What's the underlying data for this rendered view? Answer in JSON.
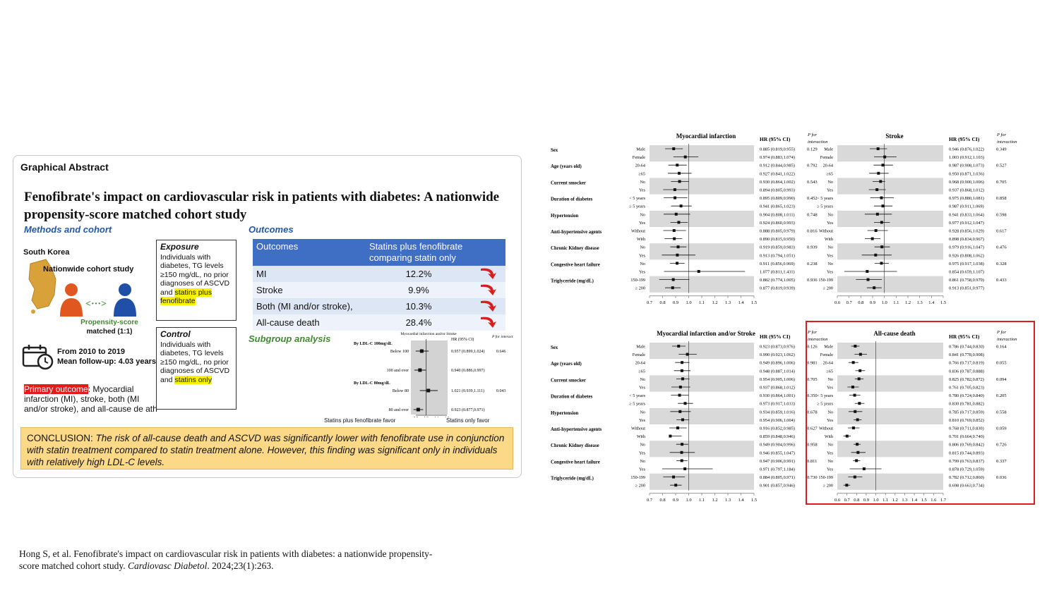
{
  "graphical_abstract": {
    "label": "Graphical Abstract",
    "title": "Fenofibrate's impact on cardiovascular risk in patients with diabetes: A nationwide propensity-score matched cohort study",
    "methods_heading": "Methods and cohort",
    "country": "South Korea",
    "cohort": "Nationwide cohort study",
    "psm_line1": "Propensity-score",
    "psm_line2": "matched (1:1)",
    "period_line1": "From 2010 to 2019",
    "period_line2": "Mean follow-up: 4.03 years",
    "primary_label": "Primary outcome",
    "primary_text": ": Myocardial infarction (MI), stroke, both (MI and/or stroke), and all-cause de ath",
    "exposure_title": "Exposure",
    "exposure_text": "Individuals with diabetes, TG levels ≥150 mg/dL, no prior diagnoses of ASCVD and",
    "exposure_highlight": "statins plus fenofibrate",
    "control_title": "Control",
    "control_text": "Individuals with diabetes, TG levels ≥150 mg/dL, no prior diagnoses of ASCVD and",
    "control_highlight": "statins only",
    "outcomes_heading": "Outcomes",
    "outcomes_col1": "Outcomes",
    "outcomes_col2": "Statins plus fenofibrate comparing statin only",
    "outcomes_rows": [
      {
        "name": "MI",
        "value": "12.2%"
      },
      {
        "name": "Stroke",
        "value": "9.9%"
      },
      {
        "name": "Both (MI and/or stroke),",
        "value": "10.3%"
      },
      {
        "name": "All-cause death",
        "value": "28.4%"
      }
    ],
    "subgroup_heading": "Subgroup analysis",
    "mini_forest": {
      "col_title": "Myocardial infarction and/or Stroke",
      "hr_header": "HR (95% CI)",
      "p_header": "P for interaction",
      "groups": [
        {
          "label": "By LDL-C 100mg/dL",
          "p": "0.646",
          "rows": [
            {
              "label": "Below 100",
              "hr": 0.957,
              "lo": 0.899,
              "hi": 1.024,
              "text": "0.957 (0.899,1.024)"
            },
            {
              "label": "100 and over",
              "hr": 0.94,
              "lo": 0.886,
              "hi": 0.997,
              "text": "0.940 (0.886,0.997)"
            }
          ]
        },
        {
          "label": "By LDL-C 80mg/dL",
          "p": "0.043",
          "rows": [
            {
              "label": "Below 80",
              "hr": 1.021,
              "lo": 0.939,
              "hi": 1.111,
              "text": "1.021 (0.939,1.111)"
            },
            {
              "label": "80 and over",
              "hr": 0.923,
              "lo": 0.877,
              "hi": 0.971,
              "text": "0.923 (0.877,0.971)"
            }
          ]
        }
      ],
      "axis_ticks": [
        "0.9",
        "1.0",
        "1.1",
        "1.2"
      ],
      "favor_left": "Statins plus fenofibrate favor",
      "favor_right": "Statins only favor"
    },
    "conclusion_label": "CONCLUSION:",
    "conclusion_text": "The risk of all-cause death and ASCVD was significantly lower with fenofibrate use in conjunction with statin treatment compared to statin treatment alone. However, this finding was significant only in individuals with relatively high LDL-C levels."
  },
  "citation_plain": "Hong S, et al. Fenofibrate's impact on cardiovascular risk in patients with diabetes: a nationwide propensity-score matched cohort study.",
  "citation_journal": "Cardiovasc Diabetol",
  "citation_tail": ". 2024;23(1):263.",
  "forest_common": {
    "hr_header": "HR (95% CI)",
    "p_header_1": "P for",
    "p_header_2": "interaction",
    "categories": [
      {
        "name": "Sex",
        "levels": [
          "Male",
          "Female"
        ]
      },
      {
        "name": "Age (years old)",
        "levels": [
          "20-64",
          "≥65"
        ]
      },
      {
        "name": "Current smocker",
        "levels": [
          "No",
          "Yes"
        ]
      },
      {
        "name": "Duration of diabetes",
        "levels": [
          "< 5 years",
          "≥ 5 years"
        ]
      },
      {
        "name": "Hypertension",
        "levels": [
          "No",
          "Yes"
        ]
      },
      {
        "name": "Anti-hypertensive agents",
        "levels": [
          "Without",
          "With"
        ]
      },
      {
        "name": "Chronic Kidney disease",
        "levels": [
          "No",
          "Yes"
        ]
      },
      {
        "name": "Congestive heart failure",
        "levels": [
          "No",
          "Yes"
        ]
      },
      {
        "name": "Triglyceride (mg/dL)",
        "levels": [
          "150-199",
          "≥ 200"
        ]
      }
    ]
  },
  "chart_data": [
    {
      "type": "forest",
      "title": "Myocardial infarction",
      "axis": {
        "min": 0.7,
        "max": 1.5,
        "ticks": [
          "0.7",
          "0.8",
          "0.9",
          "1.0",
          "1.1",
          "1.2",
          "1.3",
          "1.4",
          "1.5"
        ]
      },
      "p": [
        "0.129",
        "0.792",
        "0.543",
        "0.452",
        "0.748",
        "0.816",
        "0.939",
        "0.238",
        "0.936"
      ],
      "rows": [
        {
          "hr": 0.885,
          "lo": 0.819,
          "hi": 0.955,
          "text": "0.885 (0.819,0.955)"
        },
        {
          "hr": 0.974,
          "lo": 0.883,
          "hi": 1.074,
          "text": "0.974 (0.883,1.074)"
        },
        {
          "hr": 0.912,
          "lo": 0.844,
          "hi": 0.985,
          "text": "0.912 (0.844,0.985)"
        },
        {
          "hr": 0.927,
          "lo": 0.841,
          "hi": 1.022,
          "text": "0.927 (0.841,1.022)"
        },
        {
          "hr": 0.93,
          "lo": 0.864,
          "hi": 1.002,
          "text": "0.930 (0.864,1.002)"
        },
        {
          "hr": 0.894,
          "lo": 0.805,
          "hi": 0.993,
          "text": "0.894 (0.805,0.993)"
        },
        {
          "hr": 0.895,
          "lo": 0.809,
          "hi": 0.99,
          "text": "0.895 (0.809,0.990)"
        },
        {
          "hr": 0.941,
          "lo": 0.865,
          "hi": 1.023,
          "text": "0.941 (0.865,1.023)"
        },
        {
          "hr": 0.904,
          "lo": 0.808,
          "hi": 1.011,
          "text": "0.904 (0.808,1.011)"
        },
        {
          "hr": 0.924,
          "lo": 0.86,
          "hi": 0.993,
          "text": "0.924 (0.860,0.993)"
        },
        {
          "hr": 0.888,
          "lo": 0.805,
          "hi": 0.979,
          "text": "0.888 (0.805,0.979)"
        },
        {
          "hr": 0.89,
          "lo": 0.815,
          "hi": 0.95,
          "text": "0.890 (0.815,0.950)"
        },
        {
          "hr": 0.919,
          "lo": 0.859,
          "hi": 0.983,
          "text": "0.919 (0.859,0.983)"
        },
        {
          "hr": 0.913,
          "lo": 0.794,
          "hi": 1.051,
          "text": "0.913 (0.794,1.051)"
        },
        {
          "hr": 0.911,
          "lo": 0.856,
          "hi": 0.969,
          "text": "0.911 (0.856,0.969)"
        },
        {
          "hr": 1.077,
          "lo": 0.811,
          "hi": 1.431,
          "text": "1.077 (0.811,1.431)"
        },
        {
          "hr": 0.882,
          "lo": 0.774,
          "hi": 1.005,
          "text": "0.882 (0.774,1.005)"
        },
        {
          "hr": 0.877,
          "lo": 0.819,
          "hi": 0.939,
          "text": "0.877 (0.819,0.939)"
        }
      ]
    },
    {
      "type": "forest",
      "title": "Stroke",
      "axis": {
        "min": 0.6,
        "max": 1.5,
        "ticks": [
          "0.6",
          "0.7",
          "0.8",
          "0.9",
          "1.0",
          "1.1",
          "1.2",
          "1.3",
          "1.4",
          "1.5"
        ]
      },
      "p": [
        "0.349",
        "0.527",
        "0.705",
        "0.858",
        "0.598",
        "0.617",
        "0.476",
        "0.328",
        "0.433"
      ],
      "rows": [
        {
          "hr": 0.946,
          "lo": 0.876,
          "hi": 1.022,
          "text": "0.946 (0.876,1.022)"
        },
        {
          "hr": 1.003,
          "lo": 0.912,
          "hi": 1.103,
          "text": "1.003 (0.912,1.103)"
        },
        {
          "hr": 0.987,
          "lo": 0.908,
          "hi": 1.073,
          "text": "0.987 (0.908,1.073)"
        },
        {
          "hr": 0.95,
          "lo": 0.871,
          "hi": 1.036,
          "text": "0.950 (0.871,1.036)"
        },
        {
          "hr": 0.968,
          "lo": 0.9,
          "hi": 1.006,
          "text": "0.968 (0.900,1.006)"
        },
        {
          "hr": 0.937,
          "lo": 0.868,
          "hi": 1.012,
          "text": "0.937 (0.868,1.012)"
        },
        {
          "hr": 0.975,
          "lo": 0.88,
          "hi": 1.081,
          "text": "0.975 (0.880,1.081)"
        },
        {
          "hr": 0.987,
          "lo": 0.911,
          "hi": 1.069,
          "text": "0.987 (0.911,1.069)"
        },
        {
          "hr": 0.941,
          "lo": 0.833,
          "hi": 1.064,
          "text": "0.941 (0.833,1.064)"
        },
        {
          "hr": 0.977,
          "lo": 0.912,
          "hi": 1.047,
          "text": "0.977 (0.912,1.047)"
        },
        {
          "hr": 0.928,
          "lo": 0.856,
          "hi": 1.029,
          "text": "0.928 (0.856,1.029)"
        },
        {
          "hr": 0.898,
          "lo": 0.834,
          "hi": 0.967,
          "text": "0.898 (0.834,0.967)"
        },
        {
          "hr": 0.979,
          "lo": 0.916,
          "hi": 1.047,
          "text": "0.979 (0.916,1.047)"
        },
        {
          "hr": 0.926,
          "lo": 0.808,
          "hi": 1.062,
          "text": "0.926 (0.808,1.062)"
        },
        {
          "hr": 0.975,
          "lo": 0.917,
          "hi": 1.038,
          "text": "0.975 (0.917,1.038)"
        },
        {
          "hr": 0.854,
          "lo": 0.659,
          "hi": 1.107,
          "text": "0.854 (0.659,1.107)"
        },
        {
          "hr": 0.861,
          "lo": 0.758,
          "hi": 0.979,
          "text": "0.861 (0.758,0.979)"
        },
        {
          "hr": 0.913,
          "lo": 0.851,
          "hi": 0.977,
          "text": "0.913 (0.851,0.977)"
        }
      ]
    },
    {
      "type": "forest",
      "title": "Myocardial infarction and/or Stroke",
      "axis": {
        "min": 0.7,
        "max": 1.5,
        "ticks": [
          "0.7",
          "0.8",
          "0.9",
          "1.0",
          "1.1",
          "1.2",
          "1.3",
          "1.4",
          "1.5"
        ]
      },
      "p": [
        "0.126",
        "0.981",
        "0.705",
        "0.350",
        "0.678",
        "0.627",
        "0.958",
        "0.811",
        "0.730"
      ],
      "rows": [
        {
          "hr": 0.923,
          "lo": 0.873,
          "hi": 0.976,
          "text": "0.923 (0.873,0.976)"
        },
        {
          "hr": 0.99,
          "lo": 0.923,
          "hi": 1.062,
          "text": "0.990 (0.923,1.062)"
        },
        {
          "hr": 0.949,
          "lo": 0.896,
          "hi": 1.006,
          "text": "0.949 (0.896,1.006)"
        },
        {
          "hr": 0.948,
          "lo": 0.887,
          "hi": 1.014,
          "text": "0.948 (0.887,1.014)"
        },
        {
          "hr": 0.954,
          "lo": 0.905,
          "hi": 1.006,
          "text": "0.954 (0.905,1.006)"
        },
        {
          "hr": 0.937,
          "lo": 0.868,
          "hi": 1.012,
          "text": "0.937 (0.868,1.012)"
        },
        {
          "hr": 0.93,
          "lo": 0.864,
          "hi": 1.001,
          "text": "0.930 (0.864,1.001)"
        },
        {
          "hr": 0.973,
          "lo": 0.917,
          "hi": 1.033,
          "text": "0.973 (0.917,1.033)"
        },
        {
          "hr": 0.934,
          "lo": 0.859,
          "hi": 1.016,
          "text": "0.934 (0.859,1.016)"
        },
        {
          "hr": 0.954,
          "lo": 0.906,
          "hi": 1.004,
          "text": "0.954 (0.906,1.004)"
        },
        {
          "hr": 0.916,
          "lo": 0.852,
          "hi": 0.985,
          "text": "0.916 (0.852,0.985)"
        },
        {
          "hr": 0.859,
          "lo": 0.848,
          "hi": 0.946,
          "text": "0.859 (0.848,0.946)"
        },
        {
          "hr": 0.949,
          "lo": 0.904,
          "hi": 0.996,
          "text": "0.949 (0.904,0.996)"
        },
        {
          "hr": 0.946,
          "lo": 0.855,
          "hi": 1.047,
          "text": "0.946 (0.855,1.047)"
        },
        {
          "hr": 0.947,
          "lo": 0.906,
          "hi": 0.991,
          "text": "0.947 (0.906,0.991)"
        },
        {
          "hr": 0.971,
          "lo": 0.797,
          "hi": 1.184,
          "text": "0.971 (0.797,1.184)"
        },
        {
          "hr": 0.884,
          "lo": 0.805,
          "hi": 0.971,
          "text": "0.884 (0.805,0.971)"
        },
        {
          "hr": 0.901,
          "lo": 0.857,
          "hi": 0.946,
          "text": "0.901 (0.857,0.946)"
        }
      ]
    },
    {
      "type": "forest",
      "title": "All-cause death",
      "axis": {
        "min": 0.6,
        "max": 1.7,
        "ticks": [
          "0.6",
          "0.7",
          "0.8",
          "0.9",
          "1.0",
          "1.1",
          "1.2",
          "1.3",
          "1.4",
          "1.5",
          "1.6",
          "1.7"
        ]
      },
      "p": [
        "0.164",
        "0.055",
        "0.094",
        "0.205",
        "0.558",
        "0.059",
        "0.726",
        "0.337",
        "0.036"
      ],
      "rows": [
        {
          "hr": 0.786,
          "lo": 0.744,
          "hi": 0.83,
          "text": "0.786 (0.744,0.830)"
        },
        {
          "hr": 0.841,
          "lo": 0.778,
          "hi": 0.908,
          "text": "0.841 (0.778,0.908)"
        },
        {
          "hr": 0.766,
          "lo": 0.717,
          "hi": 0.819,
          "text": "0.766 (0.717,0.819)"
        },
        {
          "hr": 0.836,
          "lo": 0.787,
          "hi": 0.888,
          "text": "0.836 (0.787,0.888)"
        },
        {
          "hr": 0.825,
          "lo": 0.782,
          "hi": 0.872,
          "text": "0.825 (0.782,0.872)"
        },
        {
          "hr": 0.761,
          "lo": 0.705,
          "hi": 0.823,
          "text": "0.761 (0.705,0.823)"
        },
        {
          "hr": 0.78,
          "lo": 0.724,
          "hi": 0.84,
          "text": "0.780 (0.724,0.840)"
        },
        {
          "hr": 0.83,
          "lo": 0.781,
          "hi": 0.882,
          "text": "0.830 (0.781,0.882)"
        },
        {
          "hr": 0.785,
          "lo": 0.717,
          "hi": 0.859,
          "text": "0.785 (0.717,0.859)"
        },
        {
          "hr": 0.81,
          "lo": 0.769,
          "hi": 0.852,
          "text": "0.810 (0.769,0.852)"
        },
        {
          "hr": 0.768,
          "lo": 0.711,
          "hi": 0.83,
          "text": "0.768 (0.711,0.830)"
        },
        {
          "hr": 0.701,
          "lo": 0.664,
          "hi": 0.74,
          "text": "0.701 (0.664,0.740)"
        },
        {
          "hr": 0.806,
          "lo": 0.769,
          "hi": 0.842,
          "text": "0.806 (0.769,0.842)"
        },
        {
          "hr": 0.815,
          "lo": 0.744,
          "hi": 0.893,
          "text": "0.815 (0.744,0.893)"
        },
        {
          "hr": 0.799,
          "lo": 0.763,
          "hi": 0.837,
          "text": "0.799 (0.763,0.837)"
        },
        {
          "hr": 0.878,
          "lo": 0.729,
          "hi": 1.059,
          "text": "0.878 (0.729,1.059)"
        },
        {
          "hr": 0.782,
          "lo": 0.712,
          "hi": 0.86,
          "text": "0.782 (0.712,0.860)"
        },
        {
          "hr": 0.698,
          "lo": 0.663,
          "hi": 0.734,
          "text": "0.698 (0.663,0.734)"
        }
      ]
    }
  ]
}
